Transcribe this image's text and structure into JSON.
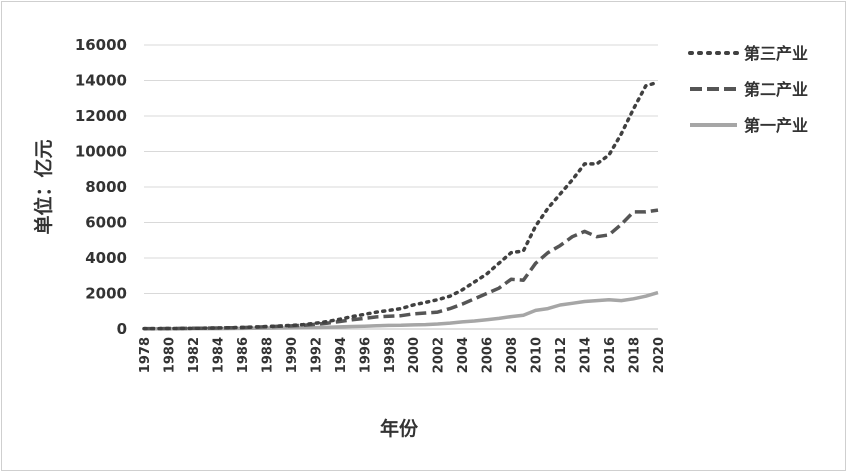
{
  "chart_data": {
    "type": "line",
    "xlabel": "年份",
    "ylabel": "单位：亿元",
    "ylim": [
      0,
      16000
    ],
    "yticks": [
      0,
      2000,
      4000,
      6000,
      8000,
      10000,
      12000,
      14000,
      16000
    ],
    "y_tick_labels": [
      "0",
      "2000",
      "4000",
      "6000",
      "8000",
      "10000",
      "12000",
      "14000",
      "16000"
    ],
    "x_tick_labels": [
      "1978",
      "1980",
      "1982",
      "1984",
      "1986",
      "1988",
      "1990",
      "1992",
      "1994",
      "1996",
      "1998",
      "2000",
      "2002",
      "2004",
      "2006",
      "2008",
      "2010",
      "2012",
      "2014",
      "2016",
      "2018",
      "2020"
    ],
    "grid": "horizontal",
    "legend": "right",
    "x": [
      1978,
      1979,
      1980,
      1981,
      1982,
      1983,
      1984,
      1985,
      1986,
      1987,
      1988,
      1989,
      1990,
      1991,
      1992,
      1993,
      1994,
      1995,
      1996,
      1997,
      1998,
      1999,
      2000,
      2001,
      2002,
      2003,
      2004,
      2005,
      2006,
      2007,
      2008,
      2009,
      2010,
      2011,
      2012,
      2013,
      2014,
      2015,
      2016,
      2017,
      2018,
      2019,
      2020
    ],
    "series": [
      {
        "name": "第三产业",
        "style": "dotted",
        "color": "#404040",
        "values": [
          20,
          25,
          30,
          35,
          40,
          50,
          60,
          75,
          90,
          110,
          140,
          170,
          200,
          250,
          320,
          420,
          550,
          700,
          820,
          950,
          1050,
          1150,
          1350,
          1500,
          1650,
          1850,
          2200,
          2650,
          3100,
          3700,
          4300,
          4400,
          5800,
          6800,
          7600,
          8400,
          9300,
          9300,
          9800,
          11000,
          12400,
          13700,
          13900
        ]
      },
      {
        "name": "第二产业",
        "style": "dashed",
        "color": "#555555",
        "values": [
          20,
          25,
          30,
          35,
          40,
          45,
          55,
          65,
          80,
          100,
          125,
          150,
          175,
          210,
          260,
          330,
          420,
          520,
          600,
          680,
          720,
          750,
          850,
          900,
          950,
          1150,
          1400,
          1700,
          2000,
          2300,
          2800,
          2750,
          3700,
          4300,
          4700,
          5200,
          5500,
          5200,
          5300,
          5900,
          6600,
          6600,
          6700
        ]
      },
      {
        "name": "第一产业",
        "style": "solid",
        "color": "#a6a6a6",
        "values": [
          10,
          12,
          15,
          17,
          20,
          22,
          25,
          30,
          35,
          40,
          50,
          55,
          60,
          70,
          80,
          100,
          120,
          140,
          160,
          180,
          200,
          210,
          230,
          250,
          280,
          330,
          400,
          450,
          520,
          600,
          700,
          780,
          1050,
          1150,
          1350,
          1450,
          1550,
          1600,
          1650,
          1600,
          1700,
          1850,
          2050
        ]
      }
    ]
  }
}
